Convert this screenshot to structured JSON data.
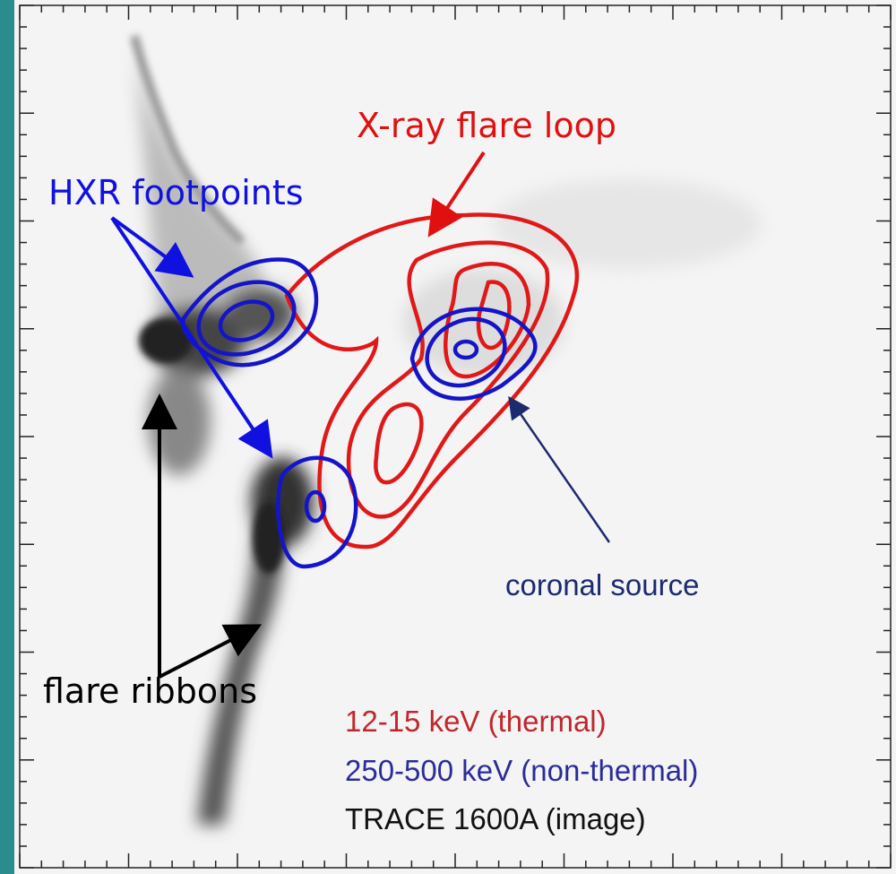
{
  "annotations": {
    "loop": "X-ray flare loop",
    "footpoints": "HXR footpoints",
    "ribbons": "flare ribbons",
    "coronal": "coronal source"
  },
  "legend": [
    "12-15 keV (thermal)",
    "250-500 keV (non-thermal)",
    "TRACE 1600A (image)"
  ]
}
